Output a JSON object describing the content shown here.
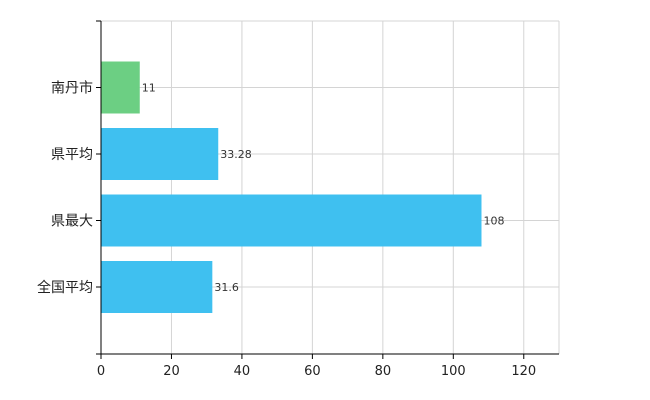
{
  "chart_data": {
    "type": "bar",
    "orientation": "horizontal",
    "title": "",
    "xlabel": "",
    "ylabel": "",
    "categories": [
      "南丹市",
      "県平均",
      "県最大",
      "全国平均"
    ],
    "values": [
      11,
      33.28,
      108,
      31.6
    ],
    "data_labels": [
      "11",
      "33.28",
      "108",
      "31.6"
    ],
    "bar_colors": [
      "#6ccf83",
      "#3fc0f0",
      "#3fc0f0",
      "#3fc0f0"
    ],
    "xlim": [
      0,
      130
    ],
    "xticks": [
      0,
      20,
      40,
      60,
      80,
      100,
      120
    ],
    "xtick_labels": [
      "0",
      "20",
      "40",
      "60",
      "80",
      "100",
      "120"
    ],
    "grid": true,
    "legend": "none"
  }
}
